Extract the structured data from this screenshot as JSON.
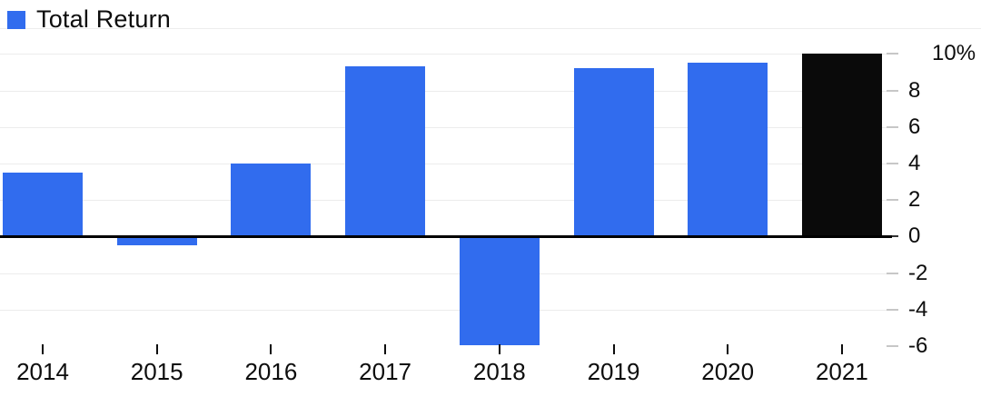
{
  "legend": {
    "label": "Total Return",
    "swatch_color": "#316CEE"
  },
  "chart_data": {
    "type": "bar",
    "title": "",
    "categories": [
      "2014",
      "2015",
      "2016",
      "2017",
      "2018",
      "2019",
      "2020",
      "2021"
    ],
    "series": [
      {
        "name": "Total Return",
        "values": [
          3.5,
          -0.4,
          4.0,
          9.3,
          -5.9,
          9.2,
          9.5,
          10.0
        ],
        "colors": [
          "#316CEE",
          "#316CEE",
          "#316CEE",
          "#316CEE",
          "#316CEE",
          "#316CEE",
          "#316CEE",
          "#0a0a0a"
        ]
      }
    ],
    "unit": "%",
    "y_axis": {
      "side": "right",
      "ticks": [
        10,
        8,
        6,
        4,
        2,
        0,
        -2,
        -4,
        -6
      ],
      "tick_labels": [
        "10%",
        "8",
        "6",
        "4",
        "2",
        "0",
        "-2",
        "-4",
        "-6"
      ],
      "ylim": [
        -6,
        11.4
      ]
    },
    "x_axis": {
      "tick_style": "short-marks-below-plot"
    },
    "grid": "horizontal",
    "legend_position": "top-left"
  },
  "colors": {
    "bar_blue": "#316CEE",
    "bar_black": "#0a0a0a",
    "gridline": "#ececec",
    "zero_line": "#000000",
    "axis_tick_gray": "#c7c7c7",
    "text": "#0d0d0d",
    "background": "#ffffff"
  }
}
